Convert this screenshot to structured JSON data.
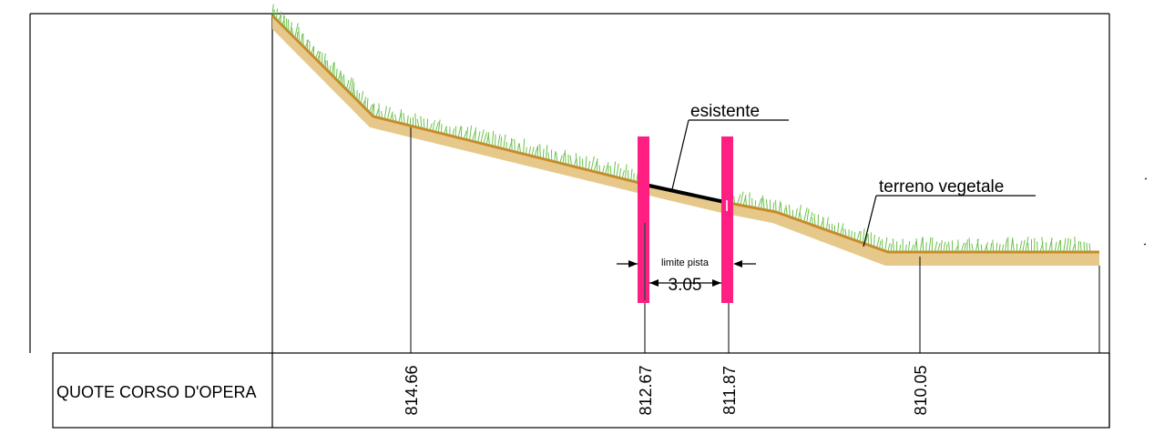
{
  "table": {
    "row_label": "QUOTE CORSO D'OPERA",
    "elevations": [
      "814.66",
      "812.67",
      "811.87",
      "810.05"
    ]
  },
  "labels": {
    "existing": "esistente",
    "topsoil": "terreno vegetale",
    "track_limit": "limite pista",
    "track_width": "3.05"
  },
  "colors": {
    "soil_fill": "#e6c98a",
    "soil_edge": "#c98a2a",
    "grass": "#6cc14a",
    "stake": "#ff1e82",
    "line": "#000000"
  }
}
